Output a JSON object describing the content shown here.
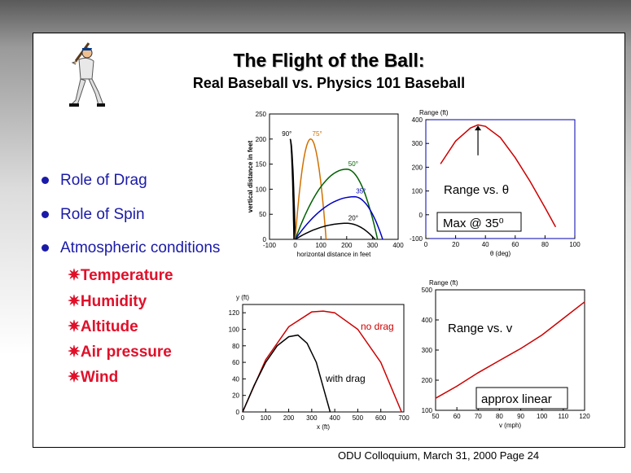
{
  "slide": {
    "title": "The Flight of the Ball:",
    "subtitle": "Real Baseball vs. Physics 101 Baseball",
    "bullets": [
      "Role of Drag",
      "Role of Spin",
      "Atmospheric conditions"
    ],
    "sub_items": [
      "Temperature",
      "Humidity",
      "Altitude",
      "Air pressure",
      "Wind"
    ],
    "sub_marker": "✷",
    "footer": "ODU Colloquium, March 31, 2000  Page 24",
    "image_icon": "baseball-batter-clipart"
  },
  "chart_data": [
    {
      "type": "line",
      "xlabel": "horizontal distance in feet",
      "ylabel": "vertical distance in feet",
      "xlim": [
        -100,
        400
      ],
      "ylim": [
        0,
        250
      ],
      "xticks": [
        "-100",
        "0",
        "100",
        "200",
        "300",
        "400"
      ],
      "yticks": [
        "0",
        "50",
        "100",
        "150",
        "200",
        "250"
      ],
      "series": [
        {
          "name": "90°",
          "color": "#000000",
          "peak": [
            -20,
            200
          ],
          "x_end": -5
        },
        {
          "name": "75°",
          "color": "#d07000",
          "peak": [
            60,
            200
          ],
          "x_end": 120
        },
        {
          "name": "50°",
          "color": "#006000",
          "peak": [
            200,
            140
          ],
          "x_end": 320
        },
        {
          "name": "35°",
          "color": "#0000c0",
          "peak": [
            230,
            85
          ],
          "x_end": 340
        },
        {
          "name": "20°",
          "color": "#000000",
          "peak": [
            200,
            32
          ],
          "x_end": 310
        }
      ]
    },
    {
      "type": "line",
      "title": "Range (ft)",
      "xlabel": "θ (deg)",
      "xlim": [
        0,
        100
      ],
      "ylim": [
        -100,
        400
      ],
      "xticks": [
        "0",
        "20",
        "40",
        "60",
        "80",
        "100"
      ],
      "yticks": [
        "-100",
        "0",
        "100",
        "200",
        "300",
        "400"
      ],
      "label": "Range vs. θ",
      "note": "Max @ 35⁰",
      "series": [
        {
          "color": "#cc0000",
          "x": [
            10,
            20,
            30,
            35,
            40,
            50,
            60,
            70,
            80,
            87
          ],
          "y": [
            215,
            310,
            365,
            378,
            372,
            325,
            240,
            140,
            30,
            -50
          ]
        }
      ]
    },
    {
      "type": "line",
      "title": "y (ft)",
      "xlabel": "x (ft)",
      "xlim": [
        0,
        700
      ],
      "ylim": [
        0,
        130
      ],
      "xticks": [
        "0",
        "100",
        "200",
        "300",
        "400",
        "500",
        "600",
        "700"
      ],
      "yticks": [
        "0",
        "20",
        "40",
        "60",
        "80",
        "100",
        "120"
      ],
      "series": [
        {
          "name": "no drag",
          "color": "#cc0000",
          "x": [
            0,
            100,
            200,
            300,
            350,
            400,
            500,
            600,
            690
          ],
          "y": [
            0,
            63,
            103,
            121,
            122,
            120,
            100,
            60,
            0
          ]
        },
        {
          "name": "with drag",
          "color": "#000000",
          "x": [
            0,
            50,
            100,
            150,
            200,
            240,
            280,
            320,
            360,
            380
          ],
          "y": [
            0,
            32,
            60,
            80,
            91,
            93,
            83,
            60,
            20,
            0
          ]
        }
      ]
    },
    {
      "type": "line",
      "title": "Range (ft)",
      "xlabel": "v (mph)",
      "xlim": [
        50,
        120
      ],
      "ylim": [
        100,
        500
      ],
      "xticks": [
        "50",
        "60",
        "70",
        "80",
        "90",
        "100",
        "110",
        "120"
      ],
      "yticks": [
        "100",
        "200",
        "300",
        "400",
        "500"
      ],
      "label": "Range vs. v",
      "note": "approx linear",
      "series": [
        {
          "color": "#cc0000",
          "x": [
            50,
            60,
            70,
            80,
            90,
            100,
            110,
            120
          ],
          "y": [
            140,
            180,
            225,
            265,
            305,
            350,
            405,
            460
          ]
        }
      ]
    }
  ]
}
